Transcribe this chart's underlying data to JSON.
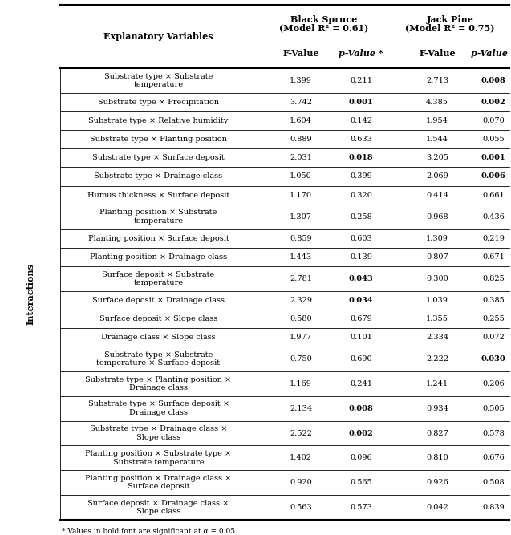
{
  "rows": [
    {
      "var": "Substrate type × Substrate\ntemperature",
      "bs_f": "1.399",
      "bs_p": "0.211",
      "bs_p_bold": false,
      "jp_f": "2.713",
      "jp_p": "0.008",
      "jp_p_bold": true
    },
    {
      "var": "Substrate type × Precipitation",
      "bs_f": "3.742",
      "bs_p": "0.001",
      "bs_p_bold": true,
      "jp_f": "4.385",
      "jp_p": "0.002",
      "jp_p_bold": true
    },
    {
      "var": "Substrate type × Relative humidity",
      "bs_f": "1.604",
      "bs_p": "0.142",
      "bs_p_bold": false,
      "jp_f": "1.954",
      "jp_p": "0.070",
      "jp_p_bold": false
    },
    {
      "var": "Substrate type × Planting position",
      "bs_f": "0.889",
      "bs_p": "0.633",
      "bs_p_bold": false,
      "jp_f": "1.544",
      "jp_p": "0.055",
      "jp_p_bold": false
    },
    {
      "var": "Substrate type × Surface deposit",
      "bs_f": "2.031",
      "bs_p": "0.018",
      "bs_p_bold": true,
      "jp_f": "3.205",
      "jp_p": "0.001",
      "jp_p_bold": true
    },
    {
      "var": "Substrate type × Drainage class",
      "bs_f": "1.050",
      "bs_p": "0.399",
      "bs_p_bold": false,
      "jp_f": "2.069",
      "jp_p": "0.006",
      "jp_p_bold": true
    },
    {
      "var": "Humus thickness × Surface deposit",
      "bs_f": "1.170",
      "bs_p": "0.320",
      "bs_p_bold": false,
      "jp_f": "0.414",
      "jp_p": "0.661",
      "jp_p_bold": false
    },
    {
      "var": "Planting position × Substrate\ntemperature",
      "bs_f": "1.307",
      "bs_p": "0.258",
      "bs_p_bold": false,
      "jp_f": "0.968",
      "jp_p": "0.436",
      "jp_p_bold": false
    },
    {
      "var": "Planting position × Surface deposit",
      "bs_f": "0.859",
      "bs_p": "0.603",
      "bs_p_bold": false,
      "jp_f": "1.309",
      "jp_p": "0.219",
      "jp_p_bold": false
    },
    {
      "var": "Planting position × Drainage class",
      "bs_f": "1.443",
      "bs_p": "0.139",
      "bs_p_bold": false,
      "jp_f": "0.807",
      "jp_p": "0.671",
      "jp_p_bold": false
    },
    {
      "var": "Surface deposit × Substrate\ntemperature",
      "bs_f": "2.781",
      "bs_p": "0.043",
      "bs_p_bold": true,
      "jp_f": "0.300",
      "jp_p": "0.825",
      "jp_p_bold": false
    },
    {
      "var": "Surface deposit × Drainage class",
      "bs_f": "2.329",
      "bs_p": "0.034",
      "bs_p_bold": true,
      "jp_f": "1.039",
      "jp_p": "0.385",
      "jp_p_bold": false
    },
    {
      "var": "Surface deposit × Slope class",
      "bs_f": "0.580",
      "bs_p": "0.679",
      "bs_p_bold": false,
      "jp_f": "1.355",
      "jp_p": "0.255",
      "jp_p_bold": false
    },
    {
      "var": "Drainage class × Slope class",
      "bs_f": "1.977",
      "bs_p": "0.101",
      "bs_p_bold": false,
      "jp_f": "2.334",
      "jp_p": "0.072",
      "jp_p_bold": false
    },
    {
      "var": "Substrate type × Substrate\ntemperature × Surface deposit",
      "bs_f": "0.750",
      "bs_p": "0.690",
      "bs_p_bold": false,
      "jp_f": "2.222",
      "jp_p": "0.030",
      "jp_p_bold": true
    },
    {
      "var": "Substrate type × Planting position ×\nDrainage class",
      "bs_f": "1.169",
      "bs_p": "0.241",
      "bs_p_bold": false,
      "jp_f": "1.241",
      "jp_p": "0.206",
      "jp_p_bold": false
    },
    {
      "var": "Substrate type × Surface deposit ×\nDrainage class",
      "bs_f": "2.134",
      "bs_p": "0.008",
      "bs_p_bold": true,
      "jp_f": "0.934",
      "jp_p": "0.505",
      "jp_p_bold": false
    },
    {
      "var": "Substrate type × Drainage class ×\nSlope class",
      "bs_f": "2.522",
      "bs_p": "0.002",
      "bs_p_bold": true,
      "jp_f": "0.827",
      "jp_p": "0.578",
      "jp_p_bold": false
    },
    {
      "var": "Planting position × Substrate type ×\nSubstrate temperature",
      "bs_f": "1.402",
      "bs_p": "0.096",
      "bs_p_bold": false,
      "jp_f": "0.810",
      "jp_p": "0.676",
      "jp_p_bold": false
    },
    {
      "var": "Planting position × Drainage class ×\nSurface deposit",
      "bs_f": "0.920",
      "bs_p": "0.565",
      "bs_p_bold": false,
      "jp_f": "0.926",
      "jp_p": "0.508",
      "jp_p_bold": false
    },
    {
      "var": "Surface deposit × Drainage class ×\nSlope class",
      "bs_f": "0.563",
      "bs_p": "0.573",
      "bs_p_bold": false,
      "jp_f": "0.042",
      "jp_p": "0.839",
      "jp_p_bold": false
    }
  ],
  "footnote": "* Values in bold font are significant at α = 0.05.",
  "bg_color": "#ffffff"
}
